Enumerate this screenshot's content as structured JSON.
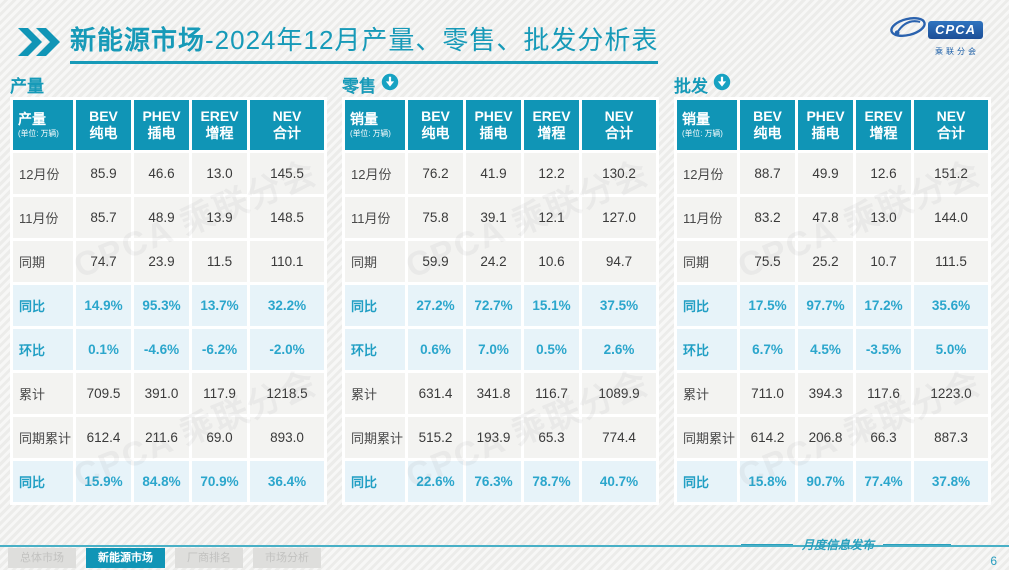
{
  "header": {
    "title_bold": "新能源市场",
    "title_rest": "-2024年12月产量、零售、批发分析表",
    "logo": {
      "text": "CPCA",
      "subtext": "乘联分会"
    }
  },
  "watermark_text": "CPCA 乘联分会",
  "tables": [
    {
      "section": "产量",
      "first_header": "产量",
      "unit": "(单位: 万辆)",
      "col_headers": [
        {
          "line1": "BEV",
          "line2": "纯电"
        },
        {
          "line1": "PHEV",
          "line2": "插电"
        },
        {
          "line1": "EREV",
          "line2": "增程"
        },
        {
          "line1": "NEV",
          "line2": "合计"
        }
      ],
      "rows": [
        {
          "label": "12月份",
          "type": "data",
          "values": [
            "85.9",
            "46.6",
            "13.0",
            "145.5"
          ]
        },
        {
          "label": "11月份",
          "type": "data",
          "values": [
            "85.7",
            "48.9",
            "13.9",
            "148.5"
          ]
        },
        {
          "label": "同期",
          "type": "data",
          "values": [
            "74.7",
            "23.9",
            "11.5",
            "110.1"
          ]
        },
        {
          "label": "同比",
          "type": "pct",
          "values": [
            "14.9%",
            "95.3%",
            "13.7%",
            "32.2%"
          ]
        },
        {
          "label": "环比",
          "type": "pct",
          "values": [
            "0.1%",
            "-4.6%",
            "-6.2%",
            "-2.0%"
          ]
        },
        {
          "label": "累计",
          "type": "data",
          "values": [
            "709.5",
            "391.0",
            "117.9",
            "1218.5"
          ]
        },
        {
          "label": "同期累计",
          "type": "data",
          "values": [
            "612.4",
            "211.6",
            "69.0",
            "893.0"
          ]
        },
        {
          "label": "同比",
          "type": "pct",
          "values": [
            "15.9%",
            "84.8%",
            "70.9%",
            "36.4%"
          ]
        }
      ]
    },
    {
      "section": "零售",
      "first_header": "销量",
      "unit": "(单位: 万辆)",
      "col_headers": [
        {
          "line1": "BEV",
          "line2": "纯电"
        },
        {
          "line1": "PHEV",
          "line2": "插电"
        },
        {
          "line1": "EREV",
          "line2": "增程"
        },
        {
          "line1": "NEV",
          "line2": "合计"
        }
      ],
      "rows": [
        {
          "label": "12月份",
          "type": "data",
          "values": [
            "76.2",
            "41.9",
            "12.2",
            "130.2"
          ]
        },
        {
          "label": "11月份",
          "type": "data",
          "values": [
            "75.8",
            "39.1",
            "12.1",
            "127.0"
          ]
        },
        {
          "label": "同期",
          "type": "data",
          "values": [
            "59.9",
            "24.2",
            "10.6",
            "94.7"
          ]
        },
        {
          "label": "同比",
          "type": "pct",
          "values": [
            "27.2%",
            "72.7%",
            "15.1%",
            "37.5%"
          ]
        },
        {
          "label": "环比",
          "type": "pct",
          "values": [
            "0.6%",
            "7.0%",
            "0.5%",
            "2.6%"
          ]
        },
        {
          "label": "累计",
          "type": "data",
          "values": [
            "631.4",
            "341.8",
            "116.7",
            "1089.9"
          ]
        },
        {
          "label": "同期累计",
          "type": "data",
          "values": [
            "515.2",
            "193.9",
            "65.3",
            "774.4"
          ]
        },
        {
          "label": "同比",
          "type": "pct",
          "values": [
            "22.6%",
            "76.3%",
            "78.7%",
            "40.7%"
          ]
        }
      ]
    },
    {
      "section": "批发",
      "first_header": "销量",
      "unit": "(单位: 万辆)",
      "col_headers": [
        {
          "line1": "BEV",
          "line2": "纯电"
        },
        {
          "line1": "PHEV",
          "line2": "插电"
        },
        {
          "line1": "EREV",
          "line2": "增程"
        },
        {
          "line1": "NEV",
          "line2": "合计"
        }
      ],
      "rows": [
        {
          "label": "12月份",
          "type": "data",
          "values": [
            "88.7",
            "49.9",
            "12.6",
            "151.2"
          ]
        },
        {
          "label": "11月份",
          "type": "data",
          "values": [
            "83.2",
            "47.8",
            "13.0",
            "144.0"
          ]
        },
        {
          "label": "同期",
          "type": "data",
          "values": [
            "75.5",
            "25.2",
            "10.7",
            "111.5"
          ]
        },
        {
          "label": "同比",
          "type": "pct",
          "values": [
            "17.5%",
            "97.7%",
            "17.2%",
            "35.6%"
          ]
        },
        {
          "label": "环比",
          "type": "pct",
          "values": [
            "6.7%",
            "4.5%",
            "-3.5%",
            "5.0%"
          ]
        },
        {
          "label": "累计",
          "type": "data",
          "values": [
            "711.0",
            "394.3",
            "117.6",
            "1223.0"
          ]
        },
        {
          "label": "同期累计",
          "type": "data",
          "values": [
            "614.2",
            "206.8",
            "66.3",
            "887.3"
          ]
        },
        {
          "label": "同比",
          "type": "pct",
          "values": [
            "15.8%",
            "90.7%",
            "77.4%",
            "37.8%"
          ]
        }
      ]
    }
  ],
  "footer": {
    "tabs": [
      {
        "label": "总体市场",
        "active": false
      },
      {
        "label": "新能源市场",
        "active": true
      },
      {
        "label": "厂商排名",
        "active": false
      },
      {
        "label": "市场分析",
        "active": false
      }
    ],
    "release_label": "月度信息发布",
    "page": "6"
  }
}
